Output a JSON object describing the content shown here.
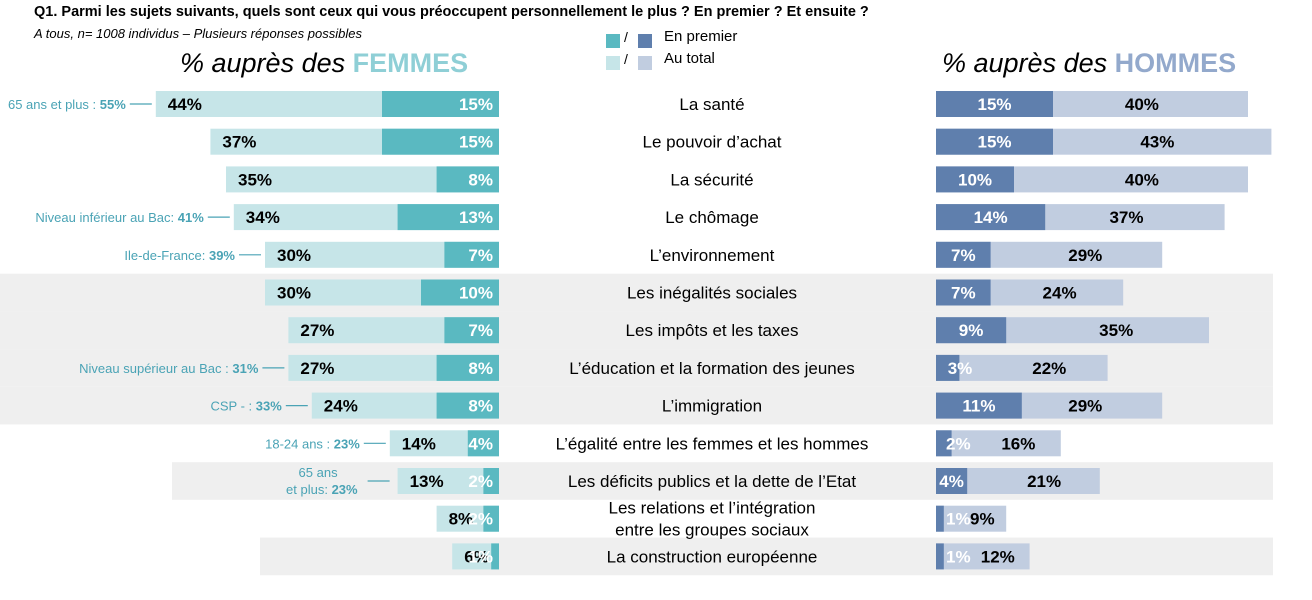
{
  "title": "Q1. Parmi les sujets suivants, quels sont ceux qui vous préoccupent personnellement le plus ? En premier ? Et ensuite ?",
  "subtitle": "A tous, n= 1008 individus – Plusieurs réponses possibles",
  "legend": {
    "first_label": "En premier",
    "total_label": "Au total",
    "slash": "/"
  },
  "headers": {
    "women_prefix": "% auprès des",
    "women_word": "FEMMES",
    "men_prefix": "% auprès des",
    "men_word": "HOMMES"
  },
  "colors": {
    "women_first": "#5ab9c1",
    "women_total": "#c6e5e8",
    "men_first": "#5f7fad",
    "men_total": "#c1cde0",
    "women_accent": "#8fcfd6",
    "men_accent": "#93a9cc",
    "note_color": "#4aa3b5",
    "band": "#efefef"
  },
  "chart_data": {
    "type": "bar",
    "categories": [
      "La santé",
      "Le pouvoir d’achat",
      "La sécurité",
      "Le chômage",
      "L’environnement",
      "Les inégalités sociales",
      "Les impôts et les taxes",
      "L’éducation et la formation des jeunes",
      "L’immigration",
      "L’égalité entre les femmes et les hommes",
      "Les déficits publics et la dette de l’Etat",
      "Les relations et l’intégration\nentre les groupes sociaux",
      "La construction européenne"
    ],
    "series": [
      {
        "name": "Femmes – En premier",
        "values": [
          15,
          15,
          8,
          13,
          7,
          10,
          7,
          8,
          8,
          4,
          2,
          2,
          1
        ]
      },
      {
        "name": "Femmes – Au total",
        "values": [
          44,
          37,
          35,
          34,
          30,
          30,
          27,
          27,
          24,
          14,
          13,
          8,
          6
        ]
      },
      {
        "name": "Hommes – En premier",
        "values": [
          15,
          15,
          10,
          14,
          7,
          7,
          9,
          3,
          11,
          2,
          4,
          1,
          1
        ]
      },
      {
        "name": "Hommes – Au total",
        "values": [
          40,
          43,
          40,
          37,
          29,
          24,
          35,
          22,
          29,
          16,
          21,
          9,
          12
        ]
      }
    ],
    "value_suffix": "%",
    "notes": [
      {
        "row": 0,
        "label": "65 ans et plus : ",
        "value": "55%"
      },
      {
        "row": 3,
        "label": "Niveau inférieur au Bac: ",
        "value": "41%"
      },
      {
        "row": 4,
        "label": "Ile-de-France: ",
        "value": "39%"
      },
      {
        "row": 7,
        "label": "Niveau supérieur au Bac : ",
        "value": "31%"
      },
      {
        "row": 8,
        "label": "CSP - : ",
        "value": "33%"
      },
      {
        "row": 9,
        "label": "18-24 ans : ",
        "value": "23%"
      },
      {
        "row": 10,
        "label": "65 ans\net plus: ",
        "value": "23%"
      }
    ],
    "shaded_rows": [
      5,
      6,
      7,
      8,
      10,
      12
    ]
  }
}
